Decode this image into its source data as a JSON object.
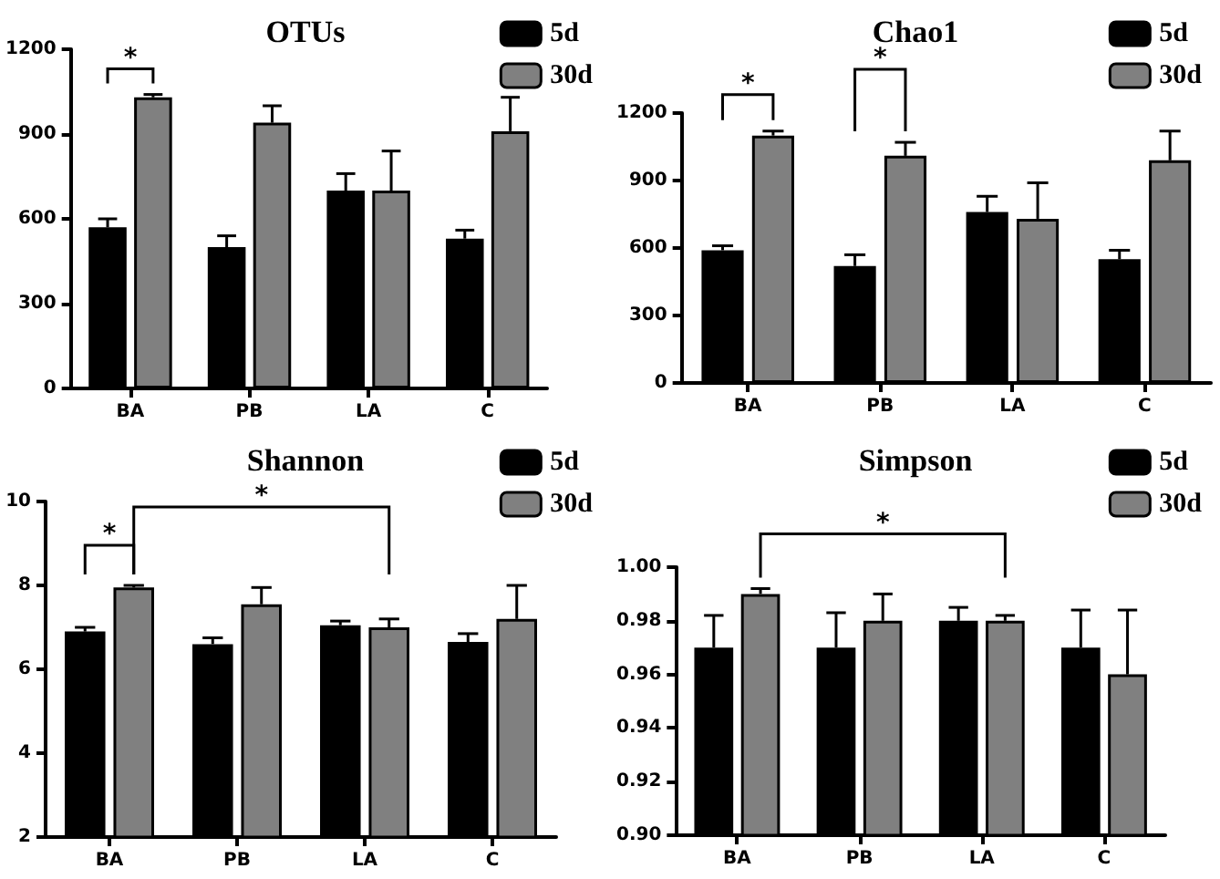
{
  "chart_data": [
    {
      "type": "bar",
      "title": "OTUs",
      "categories": [
        "BA",
        "PB",
        "LA",
        "C"
      ],
      "legend": "top right",
      "series": [
        {
          "name": "5d",
          "color": "#000000",
          "values": [
            570,
            500,
            700,
            530
          ],
          "errors": [
            [
              570,
              600
            ],
            [
              500,
              540
            ],
            [
              700,
              760
            ],
            [
              530,
              560
            ]
          ]
        },
        {
          "name": "30d",
          "color": "#808080",
          "values": [
            1030,
            940,
            700,
            910
          ],
          "errors": [
            [
              1030,
              1040
            ],
            [
              940,
              1000
            ],
            [
              700,
              840
            ],
            [
              910,
              1030
            ]
          ]
        }
      ],
      "ylim": [
        0,
        1200
      ],
      "yticks": [
        0,
        300,
        600,
        900,
        1200
      ],
      "annotations": [
        "*"
      ]
    },
    {
      "type": "bar",
      "title": "Chao1",
      "categories": [
        "BA",
        "PB",
        "LA",
        "C"
      ],
      "legend": "top right",
      "series": [
        {
          "name": "5d",
          "color": "#000000",
          "values": [
            590,
            520,
            760,
            550
          ],
          "errors": [
            [
              590,
              610
            ],
            [
              520,
              570
            ],
            [
              760,
              830
            ],
            [
              550,
              590
            ]
          ]
        },
        {
          "name": "30d",
          "color": "#808080",
          "values": [
            1100,
            1010,
            730,
            990
          ],
          "errors": [
            [
              1100,
              1120
            ],
            [
              1010,
              1070
            ],
            [
              730,
              890
            ],
            [
              990,
              1120
            ]
          ]
        }
      ],
      "ylim": [
        0,
        1200
      ],
      "yticks": [
        0,
        300,
        600,
        900,
        1200
      ],
      "annotations": [
        "*",
        "*"
      ]
    },
    {
      "type": "bar",
      "title": "Shannon",
      "categories": [
        "BA",
        "PB",
        "LA",
        "C"
      ],
      "legend": "top right",
      "series": [
        {
          "name": "5d",
          "color": "#000000",
          "values": [
            6.9,
            6.6,
            7.05,
            6.65
          ],
          "errors": [
            [
              6.9,
              7.0
            ],
            [
              6.6,
              6.75
            ],
            [
              7.05,
              7.15
            ],
            [
              6.65,
              6.85
            ]
          ]
        },
        {
          "name": "30d",
          "color": "#808080",
          "values": [
            7.95,
            7.55,
            7.0,
            7.2
          ],
          "errors": [
            [
              7.95,
              8.0
            ],
            [
              7.55,
              7.95
            ],
            [
              7.0,
              7.2
            ],
            [
              7.2,
              8.0
            ]
          ]
        }
      ],
      "ylim": [
        2,
        10
      ],
      "yticks": [
        2,
        4,
        6,
        8,
        10
      ],
      "annotations": [
        "*",
        "*"
      ]
    },
    {
      "type": "bar",
      "title": "Simpson",
      "categories": [
        "BA",
        "PB",
        "LA",
        "C"
      ],
      "legend": "top right",
      "series": [
        {
          "name": "5d",
          "color": "#000000",
          "values": [
            0.97,
            0.97,
            0.98,
            0.97
          ],
          "errors": [
            [
              0.97,
              0.982
            ],
            [
              0.97,
              0.983
            ],
            [
              0.98,
              0.985
            ],
            [
              0.97,
              0.984
            ]
          ]
        },
        {
          "name": "30d",
          "color": "#808080",
          "values": [
            0.99,
            0.98,
            0.98,
            0.96
          ],
          "errors": [
            [
              0.99,
              0.992
            ],
            [
              0.98,
              0.99
            ],
            [
              0.98,
              0.982
            ],
            [
              0.96,
              0.984
            ]
          ]
        }
      ],
      "ylim": [
        0.9,
        1.0
      ],
      "yticks": [
        {
          "value": 0.9,
          "label": "0.90"
        },
        {
          "value": 0.92,
          "label": "0.92"
        },
        {
          "value": 0.94,
          "label": "0.94"
        },
        {
          "value": 0.96,
          "label": "0.96"
        },
        {
          "value": 0.98,
          "label": "0.98"
        },
        {
          "value": 1.0,
          "label": "1.00"
        }
      ],
      "annotations": [
        "*"
      ]
    }
  ]
}
